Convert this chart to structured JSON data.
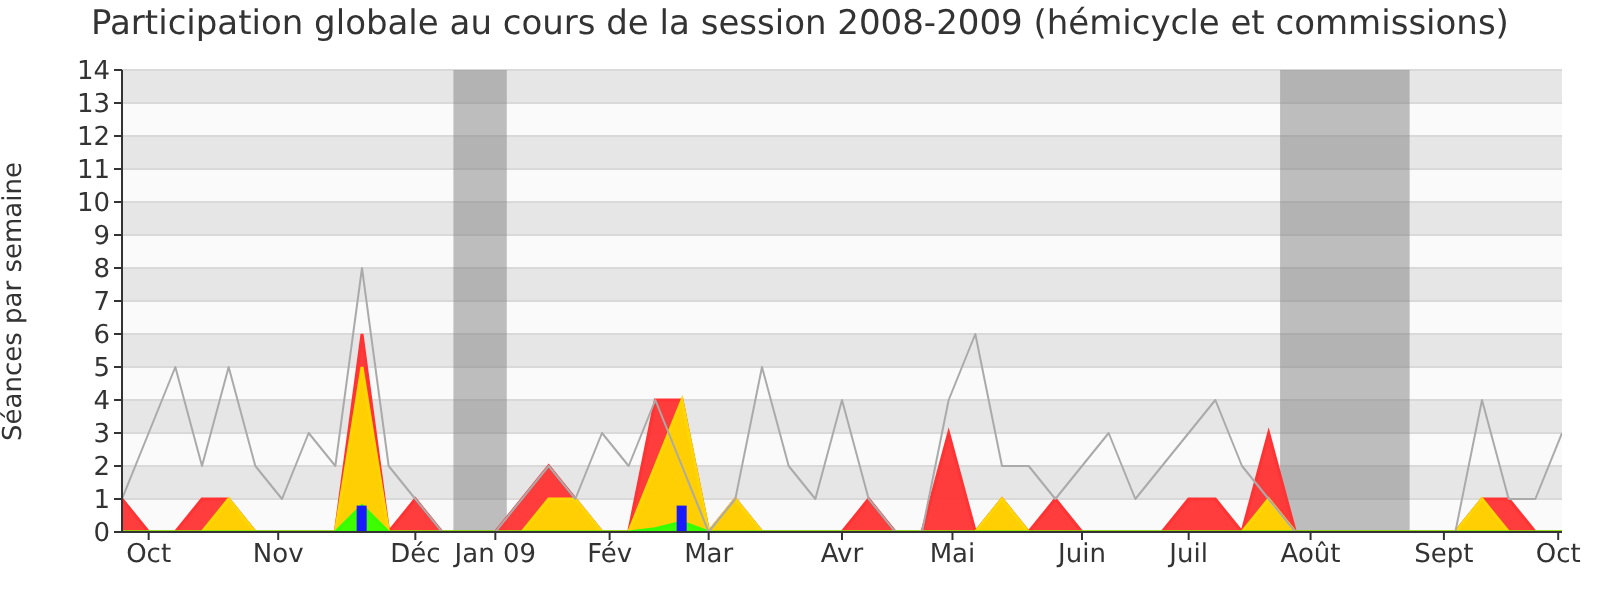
{
  "chart_data": {
    "type": "area",
    "title": "Participation globale au cours de la session 2008-2009 (hémicycle et commissions)",
    "ylabel": "Séances par semaine",
    "x": [
      "2008-09-29",
      "2008-10-06",
      "2008-10-13",
      "2008-10-20",
      "2008-10-27",
      "2008-11-03",
      "2008-11-10",
      "2008-11-17",
      "2008-11-24",
      "2008-12-01",
      "2008-12-08",
      "2008-12-15",
      "2008-12-22",
      "2008-12-29",
      "2009-01-05",
      "2009-01-12",
      "2009-01-19",
      "2009-01-26",
      "2009-02-02",
      "2009-02-09",
      "2009-02-16",
      "2009-02-23",
      "2009-03-02",
      "2009-03-09",
      "2009-03-16",
      "2009-03-23",
      "2009-03-30",
      "2009-04-06",
      "2009-04-13",
      "2009-04-20",
      "2009-04-27",
      "2009-05-04",
      "2009-05-11",
      "2009-05-18",
      "2009-05-25",
      "2009-06-01",
      "2009-06-08",
      "2009-06-15",
      "2009-06-22",
      "2009-06-29",
      "2009-07-06",
      "2009-07-13",
      "2009-07-20",
      "2009-07-27",
      "2009-08-03",
      "2009-08-10",
      "2009-08-17",
      "2009-08-24",
      "2009-08-31",
      "2009-09-07",
      "2009-09-14",
      "2009-09-21",
      "2009-09-28",
      "2009-10-05",
      "2009-10-12"
    ],
    "xlim": [
      "2008-09-29",
      "2009-10-12"
    ],
    "xticks": [
      {
        "value": "2008-10-06",
        "label": "Oct"
      },
      {
        "value": "2008-11-09",
        "label": "Nov"
      },
      {
        "value": "2008-12-15",
        "label": "Déc"
      },
      {
        "value": "2009-01-05",
        "label": "Jan 09"
      },
      {
        "value": "2009-02-04",
        "label": "Fév"
      },
      {
        "value": "2009-03-02",
        "label": "Mar"
      },
      {
        "value": "2009-04-06",
        "label": "Avr"
      },
      {
        "value": "2009-05-05",
        "label": "Mai"
      },
      {
        "value": "2009-06-08",
        "label": "Juin"
      },
      {
        "value": "2009-07-06",
        "label": "Juil"
      },
      {
        "value": "2009-08-07",
        "label": "Août"
      },
      {
        "value": "2009-09-11",
        "label": "Sept"
      },
      {
        "value": "2009-10-11",
        "label": "Oct"
      }
    ],
    "ylim": [
      0,
      14
    ],
    "yticks": [
      0,
      1,
      2,
      3,
      4,
      5,
      6,
      7,
      8,
      9,
      10,
      11,
      12,
      13,
      14
    ],
    "grid": "y",
    "legend": false,
    "bands": [
      {
        "axis": "x",
        "from": "2008-12-25",
        "to": "2009-01-08",
        "color": "#808080"
      },
      {
        "axis": "x",
        "from": "2009-07-30",
        "to": "2009-09-02",
        "color": "#808080"
      }
    ],
    "series": [
      {
        "color": "#ff3333",
        "values": [
          1,
          0,
          0,
          1,
          1,
          0,
          0,
          0,
          0,
          6,
          0,
          1,
          0,
          0,
          0,
          1,
          2,
          1,
          0,
          0,
          4,
          4,
          0,
          1,
          0,
          0,
          0,
          0,
          1,
          0,
          0,
          3,
          0,
          1,
          0,
          1,
          0,
          0,
          0,
          0,
          1,
          1,
          0,
          3,
          0,
          0,
          0,
          0,
          0,
          0,
          0,
          1,
          1,
          0,
          0
        ]
      },
      {
        "color": "#ffd700",
        "values": [
          0,
          0,
          0,
          0,
          1,
          0,
          0,
          0,
          0,
          5,
          0,
          0,
          0,
          0,
          0,
          0,
          1,
          1,
          0,
          0,
          2,
          4,
          0,
          1,
          0,
          0,
          0,
          0,
          0,
          0,
          0,
          0,
          0,
          1,
          0,
          0,
          0,
          0,
          0,
          0,
          0,
          0,
          0,
          1,
          0,
          0,
          0,
          0,
          0,
          0,
          0,
          1,
          0,
          0,
          0
        ]
      },
      {
        "color": "#33ff00",
        "values": [
          0,
          0,
          0,
          0,
          0,
          0,
          0,
          0,
          0,
          0.8,
          0,
          0,
          0,
          0,
          0,
          0,
          0,
          0,
          0,
          0,
          0.1,
          0.3,
          0,
          0,
          0,
          0,
          0,
          0,
          0,
          0,
          0,
          0,
          0,
          0,
          0,
          0,
          0,
          0,
          0,
          0,
          0,
          0,
          0,
          0,
          0,
          0,
          0,
          0,
          0,
          0,
          0,
          0,
          0,
          0,
          0
        ]
      },
      {
        "type": "bar",
        "color": "#1a1aff",
        "values": [
          null,
          null,
          null,
          null,
          null,
          null,
          null,
          null,
          null,
          0.8,
          null,
          null,
          null,
          null,
          null,
          null,
          null,
          null,
          null,
          null,
          null,
          0.8,
          null,
          null,
          null,
          null,
          null,
          null,
          null,
          null,
          null,
          null,
          null,
          null,
          null,
          null,
          null,
          null,
          null,
          null,
          null,
          null,
          null,
          null,
          null,
          null,
          null,
          null,
          null,
          null,
          null,
          null,
          null,
          null,
          null
        ]
      },
      {
        "type": "line",
        "color": "#aaaaaa",
        "values": [
          1,
          3,
          5,
          2,
          5,
          2,
          1,
          3,
          2,
          8,
          2,
          1,
          0,
          0,
          0,
          1,
          2,
          1,
          3,
          2,
          4,
          2,
          0,
          1,
          5,
          2,
          1,
          4,
          1,
          0,
          0,
          4,
          6,
          2,
          2,
          1,
          2,
          3,
          1,
          2,
          3,
          4,
          2,
          1,
          0,
          0,
          0,
          0,
          0,
          0,
          0,
          4,
          1,
          1,
          3
        ]
      }
    ]
  }
}
